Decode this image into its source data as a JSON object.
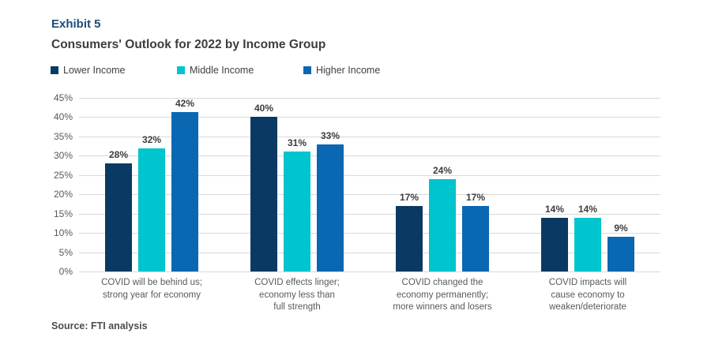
{
  "header": {
    "exhibit_label": "Exhibit 5",
    "title": "Consumers' Outlook for 2022 by Income Group"
  },
  "legend": [
    {
      "label": "Lower Income",
      "color": "#0a3a63"
    },
    {
      "label": "Middle Income",
      "color": "#00c4ce"
    },
    {
      "label": "Higher Income",
      "color": "#0a67b2"
    }
  ],
  "source": "Source: FTI analysis",
  "colors": {
    "lower_income": "#0a3a63",
    "middle_income": "#00c4ce",
    "higher_income": "#0a67b2",
    "gridline": "#d9d9d9",
    "exhibit_text": "#1b4e79",
    "title_text": "#3d3d3d",
    "axis_text": "#595959"
  },
  "chart_data": {
    "type": "bar",
    "title": "Consumers' Outlook for 2022 by Income Group",
    "xlabel": "",
    "ylabel": "",
    "ylim": [
      0,
      45
    ],
    "ytick_step": 5,
    "ytick_labels": [
      "45%",
      "40%",
      "35%",
      "30%",
      "25%",
      "20%",
      "15%",
      "10%",
      "5%",
      "0%"
    ],
    "grid": true,
    "legend_position": "top",
    "categories": [
      "COVID will be behind us;\nstrong year for economy",
      "COVID effects linger;\neconomy less than\nfull strength",
      "COVID changed the\neconomy permanently;\nmore winners and losers",
      "COVID impacts will\ncause economy to\nweaken/deteriorate"
    ],
    "series": [
      {
        "name": "Lower Income",
        "color": "#0a3a63",
        "values": [
          28,
          40,
          17,
          14
        ],
        "labels": [
          "28%",
          "40%",
          "17%",
          "14%"
        ]
      },
      {
        "name": "Middle Income",
        "color": "#00c4ce",
        "values": [
          32,
          31,
          24,
          14
        ],
        "labels": [
          "32%",
          "31%",
          "24%",
          "14%"
        ]
      },
      {
        "name": "Higher Income",
        "color": "#0a67b2",
        "values": [
          42,
          33,
          17,
          9
        ],
        "labels": [
          "42%",
          "33%",
          "17%",
          "9%"
        ]
      }
    ]
  }
}
